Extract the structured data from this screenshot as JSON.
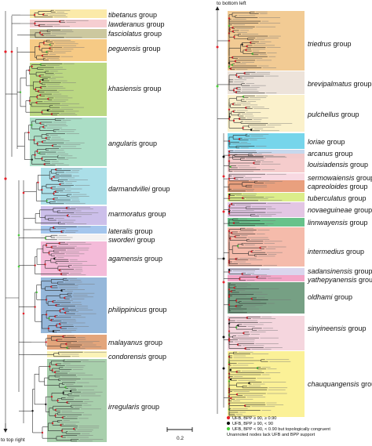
{
  "left_groups": [
    {
      "name": "tibetanus",
      "suffix": " group",
      "color": "#fbe9a4"
    },
    {
      "name": "lawderanus",
      "suffix": " group",
      "color": "#f6cbcf"
    },
    {
      "name": "fasciolatus",
      "suffix": " group",
      "color": "#c9c59a"
    },
    {
      "name": "peguensis",
      "suffix": " group",
      "color": "#f5c77e"
    },
    {
      "name": "khasiensis",
      "suffix": " group",
      "color": "#b7d67c"
    },
    {
      "name": "angularis",
      "suffix": " group",
      "color": "#a6dcc3"
    },
    {
      "name": "darmandvillei",
      "suffix": " group",
      "color": "#a6dde7"
    },
    {
      "name": "marmoratus",
      "suffix": " group",
      "color": "#c9bce9"
    },
    {
      "name": "lateralis",
      "suffix": " group",
      "color": "#9fc3ec"
    },
    {
      "name": "sworderi",
      "suffix": " group",
      "color": "#f3f1f1"
    },
    {
      "name": "agamensis",
      "suffix": " group",
      "color": "#f3b7d7"
    },
    {
      "name": "philippinicus",
      "suffix": " group",
      "color": "#8fb3d8"
    },
    {
      "name": "malayanus",
      "suffix": " group",
      "color": "#e2a074"
    },
    {
      "name": "condorensis",
      "suffix": " group",
      "color": "#fbf2b3"
    },
    {
      "name": "irregularis",
      "suffix": " group",
      "color": "#a3cca8"
    }
  ],
  "right_groups": [
    {
      "name": "triedrus",
      "suffix": " group",
      "color": "#f1c88e"
    },
    {
      "name": "brevipalmatus",
      "suffix": " group",
      "color": "#ece1d8"
    },
    {
      "name": "pulchellus",
      "suffix": " group",
      "color": "#fbf0c8"
    },
    {
      "name": "loriae",
      "suffix": " group",
      "color": "#6fd3ea"
    },
    {
      "name": "arcanus",
      "suffix": " group",
      "color": "#c4d6ec"
    },
    {
      "name": "louisiadensis",
      "suffix": " group",
      "color": "#f4c9c9"
    },
    {
      "name": "sermowaiensis",
      "suffix": " group",
      "color": "#f8d7e0"
    },
    {
      "name": "capreoloides",
      "suffix": " group",
      "color": "#e89b77"
    },
    {
      "name": "tuberculatus",
      "suffix": " group",
      "color": "#d9ec84"
    },
    {
      "name": "novaeguineae",
      "suffix": " group",
      "color": "#e2c3e3"
    },
    {
      "name": "linnwayensis",
      "suffix": " group",
      "color": "#5fbf84"
    },
    {
      "name": "intermedius",
      "suffix": " group",
      "color": "#f4b7a6"
    },
    {
      "name": "sadansinensis",
      "suffix": " group",
      "color": "#d8d3ec"
    },
    {
      "name": "yathepyanensis",
      "suffix": " group",
      "color": "#f3a0c4"
    },
    {
      "name": "oldhami",
      "suffix": " group",
      "color": "#6f9b7d"
    },
    {
      "name": "sinyineensis",
      "suffix": " group",
      "color": "#f4d4dc"
    },
    {
      "name": "chauquangensis",
      "suffix": " group",
      "color": "#fbf091"
    }
  ],
  "annotations": {
    "to_bottom_left": "to bottom left",
    "to_top_right": "to top right",
    "scale": "0.2"
  },
  "legend": {
    "items": [
      {
        "color": "#e8202a",
        "text": "UFB, BPP ≥ 90, ≥ 0.90"
      },
      {
        "color": "#111111",
        "text": "UFB, BPP ≥ 90, < 90"
      },
      {
        "color": "#49d13a",
        "text": "UFB, BPP < 90, < 0.90 but topologically congruent"
      }
    ],
    "note": "Unannoted nodes lack UFB and BPP support"
  }
}
